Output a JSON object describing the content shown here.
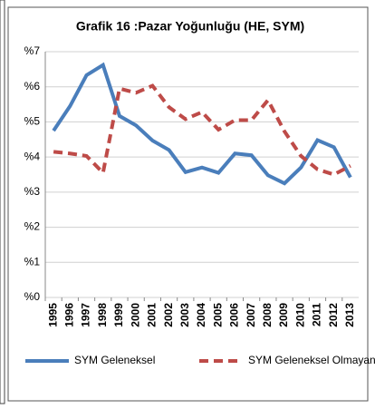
{
  "chart_data": {
    "type": "line",
    "title": "Grafik 16 :Pazar Yoğunluğu (HE, SYM)",
    "categories": [
      "1995",
      "1996",
      "1997",
      "1998",
      "1999",
      "2000",
      "2001",
      "2002",
      "2003",
      "2004",
      "2005",
      "2006",
      "2007",
      "2008",
      "2009",
      "2010",
      "2011",
      "2012",
      "2013"
    ],
    "series": [
      {
        "name": "SYM Geleneksel",
        "color": "#4a7ebb",
        "dash": false,
        "values": [
          4.75,
          5.45,
          6.33,
          6.62,
          5.17,
          4.9,
          4.47,
          4.2,
          3.57,
          3.7,
          3.55,
          4.1,
          4.05,
          3.48,
          3.25,
          3.7,
          4.48,
          4.28,
          3.42
        ]
      },
      {
        "name": "SYM Geleneksel Olmayan",
        "color": "#be4b48",
        "dash": true,
        "values": [
          4.15,
          4.1,
          4.03,
          3.55,
          5.95,
          5.83,
          6.03,
          5.42,
          5.08,
          5.28,
          4.78,
          5.05,
          5.05,
          5.62,
          4.73,
          4.03,
          3.65,
          3.5,
          3.75
        ]
      }
    ],
    "ylim": [
      0,
      7
    ],
    "yticks": [
      {
        "value": 0,
        "label": "%0"
      },
      {
        "value": 1,
        "label": "%1"
      },
      {
        "value": 2,
        "label": "%2"
      },
      {
        "value": 3,
        "label": "%3"
      },
      {
        "value": 4,
        "label": "%4"
      },
      {
        "value": 5,
        "label": "%5"
      },
      {
        "value": 6,
        "label": "%6"
      },
      {
        "value": 7,
        "label": "%7"
      }
    ],
    "grid": true,
    "legend": "bottom"
  }
}
